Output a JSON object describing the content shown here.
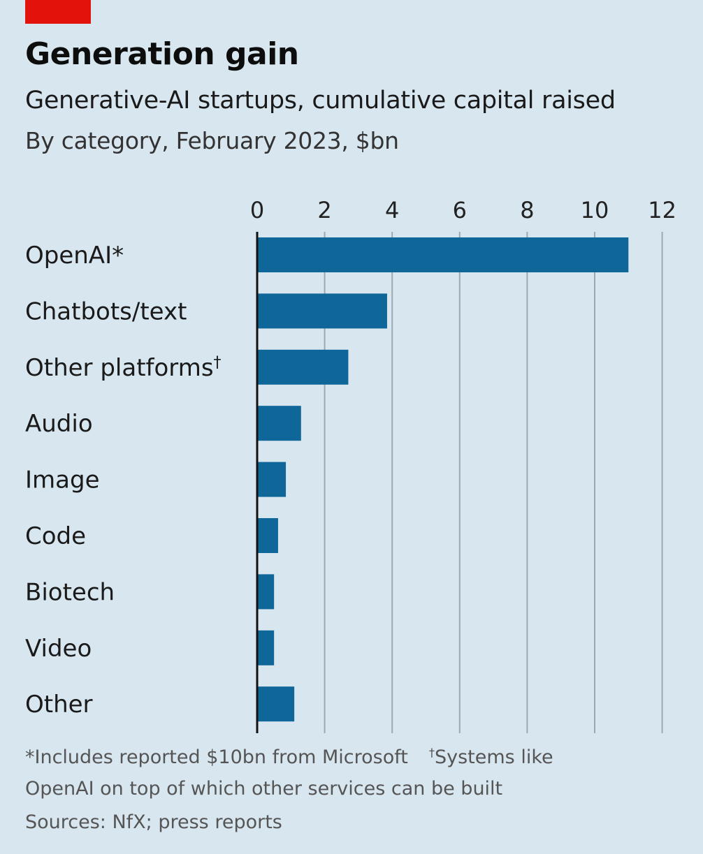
{
  "header": {
    "title": "Generation gain",
    "subtitle": "Generative-AI startups, cumulative capital raised",
    "unit_note": "By category, February 2023, $bn"
  },
  "footnotes": {
    "openai_note": "*Includes reported $10bn from Microsoft",
    "platforms_marker": "†",
    "platforms_note_start": "Systems like",
    "platforms_note_end": "OpenAI on top of which other services can be built",
    "sources": "Sources: NfX; press reports"
  },
  "colors": {
    "bar": "#0f6699",
    "gridline": "#9aaab3",
    "background": "#d8e6ef",
    "brand_red": "#e3120b"
  },
  "chart_data": {
    "type": "bar",
    "orientation": "horizontal",
    "title": "Generation gain",
    "subtitle": "Generative-AI startups, cumulative capital raised",
    "xlabel": "$bn",
    "xlim": [
      0,
      12
    ],
    "xticks": [
      0,
      2,
      4,
      6,
      8,
      10,
      12
    ],
    "axis_position": "top",
    "grid": true,
    "categories": [
      "OpenAI*",
      "Chatbots/text",
      "Other platforms†",
      "Audio",
      "Image",
      "Code",
      "Biotech",
      "Video",
      "Other"
    ],
    "values": [
      11.0,
      3.85,
      2.7,
      1.3,
      0.85,
      0.62,
      0.5,
      0.5,
      1.1
    ]
  }
}
